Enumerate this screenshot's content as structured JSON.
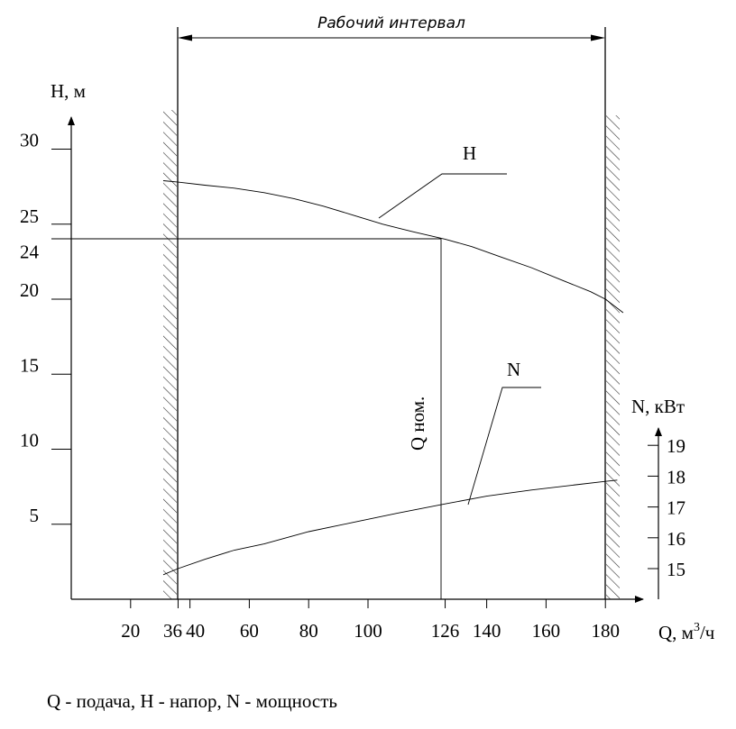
{
  "chart_data": {
    "type": "line",
    "interval_label": "Рабочий интервал",
    "working_interval": [
      36,
      180
    ],
    "nominal_point": {
      "q": 126,
      "h": 24,
      "label": "Q ном."
    },
    "x_axis": {
      "label_main": "Q, м",
      "label_sup": "3",
      "label_tail": "/ч",
      "range": [
        0,
        190
      ],
      "ticks": [
        {
          "v": 20,
          "label": "20"
        },
        {
          "v": 36,
          "label": "36"
        },
        {
          "v": 40,
          "label": "40"
        },
        {
          "v": 60,
          "label": "60"
        },
        {
          "v": 80,
          "label": "80"
        },
        {
          "v": 100,
          "label": "100"
        },
        {
          "v": 126,
          "label": "126"
        },
        {
          "v": 140,
          "label": "140"
        },
        {
          "v": 160,
          "label": "160"
        },
        {
          "v": 180,
          "label": "180"
        }
      ]
    },
    "y_left": {
      "label": "H, м",
      "range": [
        0,
        32
      ],
      "ticks": [
        {
          "v": 5,
          "label": "5"
        },
        {
          "v": 10,
          "label": "10"
        },
        {
          "v": 15,
          "label": "15"
        },
        {
          "v": 20,
          "label": "20"
        },
        {
          "v": 24,
          "label": "24"
        },
        {
          "v": 25,
          "label": "25"
        },
        {
          "v": 30,
          "label": "30"
        }
      ]
    },
    "y_right": {
      "label": "N, кВт",
      "range": [
        14,
        19.5
      ],
      "ticks": [
        {
          "v": 15,
          "label": "15"
        },
        {
          "v": 16,
          "label": "16"
        },
        {
          "v": 17,
          "label": "17"
        },
        {
          "v": 18,
          "label": "18"
        },
        {
          "v": 19,
          "label": "19"
        }
      ]
    },
    "series": [
      {
        "name": "H",
        "axis": "left",
        "x": [
          31,
          36,
          45,
          55,
          65,
          75,
          85,
          95,
          105,
          115,
          126,
          135,
          145,
          155,
          165,
          175,
          180,
          186
        ],
        "y": [
          27.9,
          27.8,
          27.6,
          27.4,
          27.1,
          26.7,
          26.2,
          25.6,
          25.0,
          24.5,
          24.0,
          23.5,
          22.8,
          22.1,
          21.3,
          20.5,
          20.0,
          19.1
        ]
      },
      {
        "name": "N",
        "axis": "right",
        "x": [
          31,
          36,
          45,
          55,
          65,
          80,
          95,
          110,
          126,
          140,
          155,
          170,
          180,
          184
        ],
        "y": [
          14.8,
          15.0,
          15.3,
          15.6,
          15.8,
          16.2,
          16.5,
          16.8,
          17.1,
          17.35,
          17.55,
          17.72,
          17.83,
          17.87
        ]
      }
    ]
  },
  "caption": "Q - подача, Н - напор, N - мощность"
}
